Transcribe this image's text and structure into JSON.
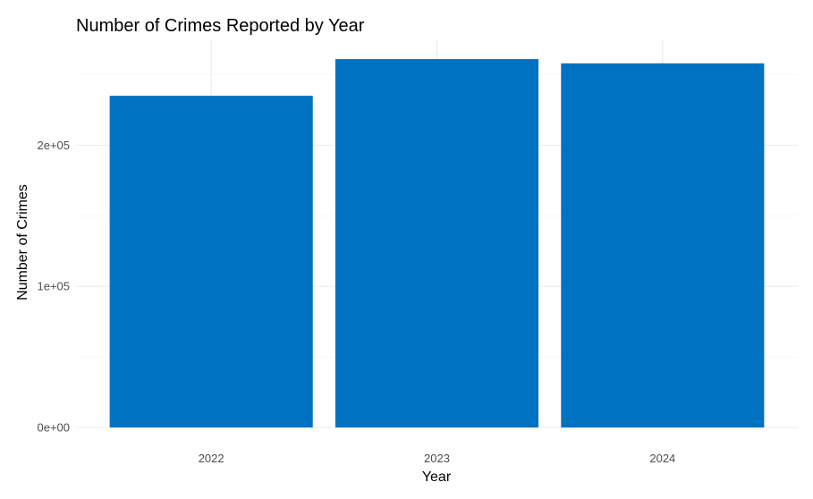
{
  "chart_data": {
    "type": "bar",
    "title": "Number of Crimes Reported by Year",
    "xlabel": "Year",
    "ylabel": "Number of Crimes",
    "categories": [
      "2022",
      "2023",
      "2024"
    ],
    "values": [
      235000,
      261000,
      258000
    ],
    "ylim": [
      0,
      275000
    ],
    "yticks": [
      0,
      100000,
      200000
    ],
    "ytick_labels": [
      "0e+00",
      "1e+05",
      "2e+05"
    ],
    "grid": true,
    "legend": "none",
    "colors": {
      "bar": "#0072C2"
    }
  }
}
